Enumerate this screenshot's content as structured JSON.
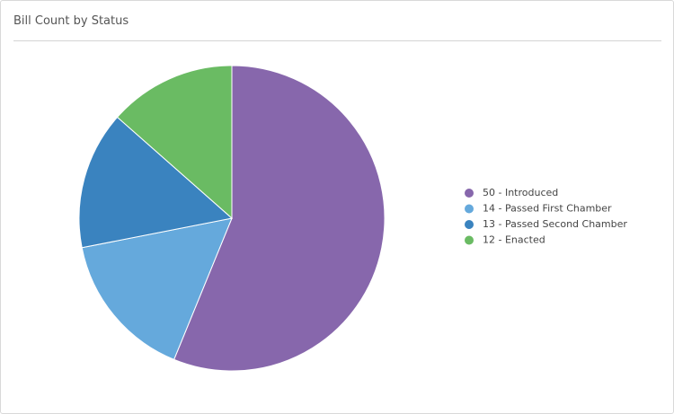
{
  "chart_data": {
    "type": "pie",
    "title": "Bill Count by Status",
    "categories": [
      "Introduced",
      "Passed First Chamber",
      "Passed Second Chamber",
      "Enacted"
    ],
    "values": [
      50,
      14,
      13,
      12
    ],
    "legend_labels": [
      "50 - Introduced",
      "14 - Passed First Chamber",
      "13 - Passed Second Chamber",
      "12 - Enacted"
    ],
    "colors": [
      "#8767ac",
      "#65a9dc",
      "#3a83bf",
      "#6abb63"
    ],
    "legend": "right"
  }
}
